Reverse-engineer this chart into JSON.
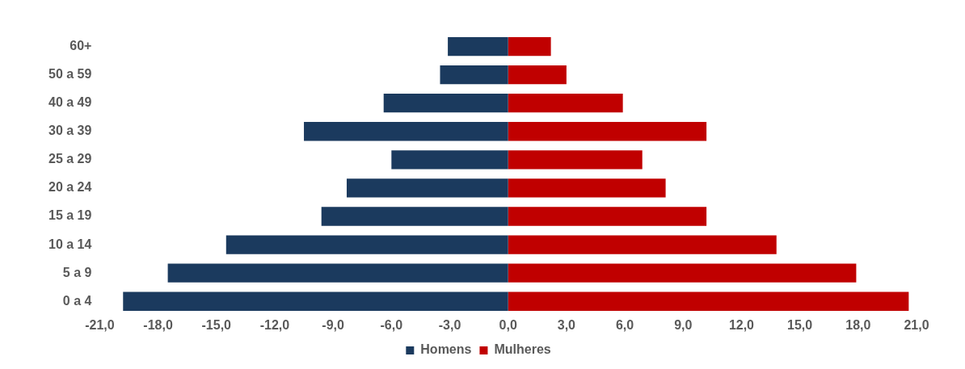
{
  "chart_data": {
    "type": "bar",
    "orientation": "horizontal",
    "stacked": true,
    "categories": [
      "60+",
      "50 a 59",
      "40 a 49",
      "30 a 39",
      "25 a 29",
      "20 a 24",
      "15 a 19",
      "10 a 14",
      "5 a 9",
      "0 a 4"
    ],
    "series": [
      {
        "name": "Homens",
        "color": "#1b3a5e",
        "values": [
          -3.1,
          -3.5,
          -6.4,
          -10.5,
          -6.0,
          -8.3,
          -9.6,
          -14.5,
          -17.5,
          -19.8
        ]
      },
      {
        "name": "Mulheres",
        "color": "#c00000",
        "values": [
          2.2,
          3.0,
          5.9,
          10.2,
          6.9,
          8.1,
          10.2,
          13.8,
          17.9,
          20.6
        ]
      }
    ],
    "xlim": [
      -21,
      21
    ],
    "xticks": [
      {
        "value": -21,
        "label": "-21,0"
      },
      {
        "value": -18,
        "label": "-18,0"
      },
      {
        "value": -15,
        "label": "-15,0"
      },
      {
        "value": -12,
        "label": "-12,0"
      },
      {
        "value": -9,
        "label": "-9,0"
      },
      {
        "value": -6,
        "label": "-6,0"
      },
      {
        "value": -3,
        "label": "-3,0"
      },
      {
        "value": 0,
        "label": "0,0"
      },
      {
        "value": 3,
        "label": "3,0"
      },
      {
        "value": 6,
        "label": "6,0"
      },
      {
        "value": 9,
        "label": "9,0"
      },
      {
        "value": 12,
        "label": "12,0"
      },
      {
        "value": 15,
        "label": "15,0"
      },
      {
        "value": 18,
        "label": "18,0"
      },
      {
        "value": 21,
        "label": "21,0"
      }
    ],
    "grid": false,
    "legend": "bottom"
  }
}
